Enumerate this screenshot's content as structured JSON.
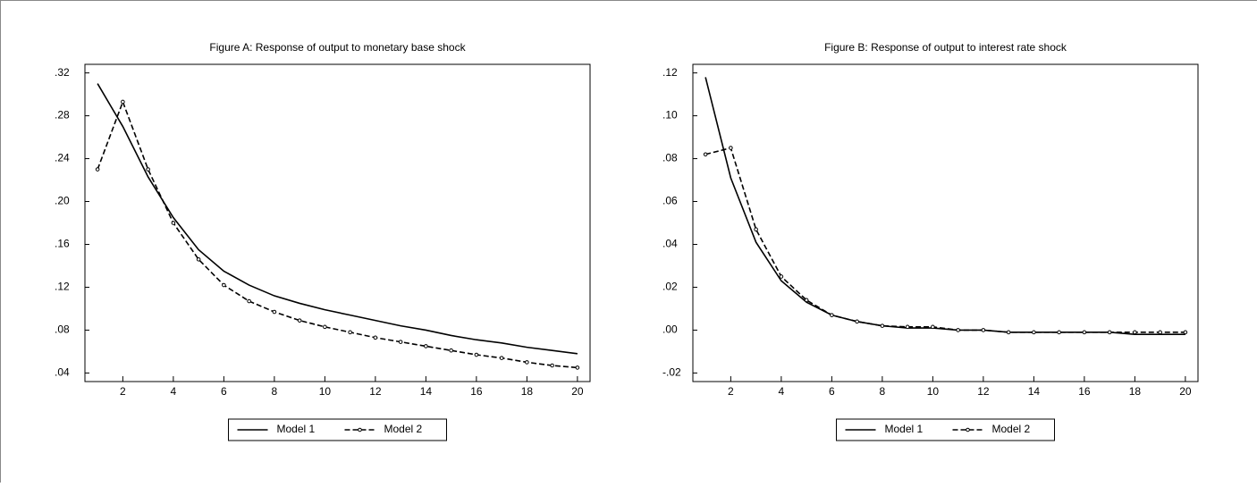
{
  "chart_data": [
    {
      "type": "line",
      "title": "Figure A: Response of output to monetary base shock",
      "x": [
        1,
        2,
        3,
        4,
        5,
        6,
        7,
        8,
        9,
        10,
        11,
        12,
        13,
        14,
        15,
        16,
        17,
        18,
        19,
        20
      ],
      "series": [
        {
          "name": "Model 1",
          "color": "#000000",
          "line_style": "solid",
          "values": [
            0.31,
            0.27,
            0.223,
            0.185,
            0.155,
            0.135,
            0.122,
            0.112,
            0.105,
            0.099,
            0.094,
            0.089,
            0.084,
            0.08,
            0.075,
            0.071,
            0.068,
            0.064,
            0.061,
            0.058
          ]
        },
        {
          "name": "Model 2",
          "color": "#000000",
          "line_style": "dashed",
          "marker": "circle",
          "values": [
            0.23,
            0.293,
            0.23,
            0.18,
            0.146,
            0.122,
            0.107,
            0.097,
            0.089,
            0.083,
            0.078,
            0.073,
            0.069,
            0.065,
            0.061,
            0.057,
            0.054,
            0.05,
            0.047,
            0.045
          ]
        }
      ],
      "xlim": [
        0.5,
        20.5
      ],
      "xticks": [
        2,
        4,
        6,
        8,
        10,
        12,
        14,
        16,
        18,
        20
      ],
      "ylim": [
        0.032,
        0.328
      ],
      "yticks": [
        {
          "value": 0.04,
          "label": ".04"
        },
        {
          "value": 0.08,
          "label": ".08"
        },
        {
          "value": 0.12,
          "label": ".12"
        },
        {
          "value": 0.16,
          "label": ".16"
        },
        {
          "value": 0.2,
          "label": ".20"
        },
        {
          "value": 0.24,
          "label": ".24"
        },
        {
          "value": 0.28,
          "label": ".28"
        },
        {
          "value": 0.32,
          "label": ".32"
        }
      ],
      "legend": "bottom"
    },
    {
      "type": "line",
      "title": "Figure B: Response of output to interest rate shock",
      "x": [
        1,
        2,
        3,
        4,
        5,
        6,
        7,
        8,
        9,
        10,
        11,
        12,
        13,
        14,
        15,
        16,
        17,
        18,
        19,
        20
      ],
      "series": [
        {
          "name": "Model 1",
          "color": "#000000",
          "line_style": "solid",
          "values": [
            0.118,
            0.071,
            0.041,
            0.023,
            0.013,
            0.007,
            0.004,
            0.002,
            0.001,
            0.001,
            0.0,
            0.0,
            -0.001,
            -0.001,
            -0.001,
            -0.001,
            -0.001,
            -0.002,
            -0.002,
            -0.002
          ]
        },
        {
          "name": "Model 2",
          "color": "#000000",
          "line_style": "dashed",
          "marker": "circle",
          "values": [
            0.082,
            0.085,
            0.047,
            0.025,
            0.014,
            0.007,
            0.004,
            0.002,
            0.0015,
            0.0015,
            0.0,
            0.0,
            -0.001,
            -0.001,
            -0.001,
            -0.001,
            -0.001,
            -0.001,
            -0.001,
            -0.001
          ]
        }
      ],
      "xlim": [
        0.5,
        20.5
      ],
      "xticks": [
        2,
        4,
        6,
        8,
        10,
        12,
        14,
        16,
        18,
        20
      ],
      "ylim": [
        -0.024,
        0.124
      ],
      "yticks": [
        {
          "value": -0.02,
          "label": "-.02"
        },
        {
          "value": 0,
          "label": ".00"
        },
        {
          "value": 0.02,
          "label": ".02"
        },
        {
          "value": 0.04,
          "label": ".04"
        },
        {
          "value": 0.06,
          "label": ".06"
        },
        {
          "value": 0.08,
          "label": ".08"
        },
        {
          "value": 0.1,
          "label": ".10"
        },
        {
          "value": 0.12,
          "label": ".12"
        }
      ],
      "legend": "bottom"
    }
  ]
}
